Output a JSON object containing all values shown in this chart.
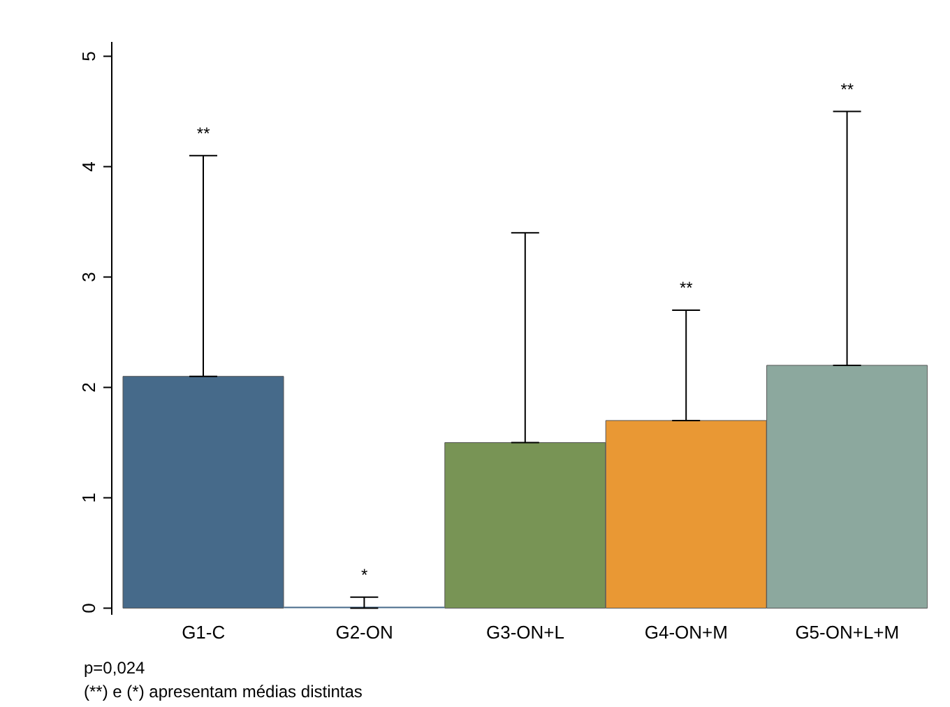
{
  "chart_data": {
    "type": "bar",
    "categories": [
      "G1-C",
      "G2-ON",
      "G3-ON+L",
      "G4-ON+M",
      "G5-ON+L+M"
    ],
    "values": [
      2.1,
      0,
      1.5,
      1.7,
      2.2
    ],
    "colors": [
      "#466a8a",
      "#466a8a",
      "#789455",
      "#e99834",
      "#8ca89e"
    ],
    "errors": [
      [
        2.1,
        4.1
      ],
      [
        0,
        0.1
      ],
      [
        1.5,
        3.4
      ],
      [
        1.7,
        2.7
      ],
      [
        2.2,
        4.5
      ]
    ],
    "ylim": [
      -0.06,
      5.13
    ],
    "yticks": [
      0,
      1,
      2,
      3,
      4,
      5
    ],
    "grid": false,
    "annotations": [
      {
        "text": "**",
        "x": "G1-C",
        "y": 4.1
      },
      {
        "text": "*",
        "x": "G2-ON",
        "y": 0.1
      },
      {
        "text": "**",
        "x": "G4-ON+M",
        "y": 2.7
      },
      {
        "text": "**",
        "x": "G5-ON+L+M",
        "y": 4.5
      },
      "p=0,024",
      "(**) e (*) apresentam médias distintas"
    ]
  }
}
